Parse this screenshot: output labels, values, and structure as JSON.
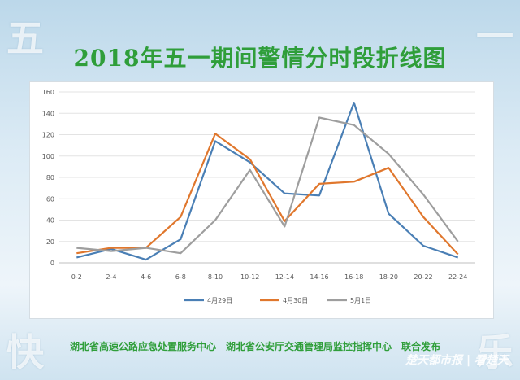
{
  "decor": {
    "top_left": "五",
    "top_right": "一",
    "bottom_left": "快",
    "bottom_right": "乐"
  },
  "footer": {
    "publisher": "湖北省高速公路应急处置服务中心　湖北省公安厅交通管理局监控指挥中心　联合发布"
  },
  "watermark": {
    "text": "楚天都市报 | 看楚天"
  },
  "chart_data": {
    "type": "line",
    "title": "2018年五一期间警情分时段折线图",
    "categories": [
      "0-2",
      "2-4",
      "4-6",
      "6-8",
      "8-10",
      "10-12",
      "12-14",
      "14-16",
      "16-18",
      "18-20",
      "20-22",
      "22-24"
    ],
    "ylim": [
      0,
      160
    ],
    "yticks": [
      0,
      20,
      40,
      60,
      80,
      100,
      120,
      140,
      160
    ],
    "grid": true,
    "legend_position": "bottom",
    "series": [
      {
        "name": "4月29日",
        "color": "#4a7fb5",
        "values": [
          5,
          13,
          3,
          22,
          114,
          94,
          65,
          63,
          150,
          46,
          16,
          5
        ]
      },
      {
        "name": "4月30日",
        "color": "#e0772d",
        "values": [
          9,
          14,
          14,
          43,
          121,
          97,
          39,
          74,
          76,
          89,
          43,
          8
        ]
      },
      {
        "name": "5月1日",
        "color": "#9e9e9e",
        "values": [
          14,
          11,
          14,
          9,
          40,
          87,
          34,
          136,
          129,
          102,
          64,
          20
        ]
      }
    ]
  }
}
